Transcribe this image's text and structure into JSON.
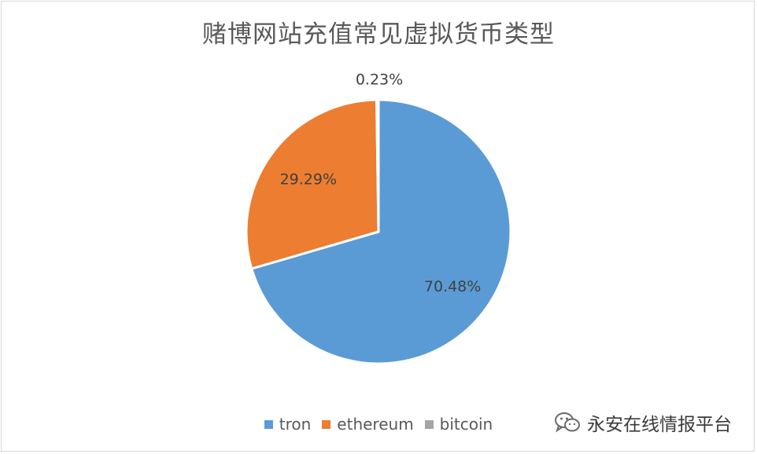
{
  "colors": {
    "tron": "#5b9bd5",
    "ethereum": "#ed7d31",
    "bitcoin": "#a5a5a5",
    "text": "#595959"
  },
  "watermark": {
    "text": "永安在线情报平台"
  },
  "chart_data": {
    "type": "pie",
    "title": "赌博网站充值常见虚拟货币类型",
    "categories": [
      "tron",
      "ethereum",
      "bitcoin"
    ],
    "values": [
      70.48,
      29.29,
      0.23
    ],
    "labels": [
      "70.48%",
      "29.29%",
      "0.23%"
    ],
    "legend_position": "bottom",
    "start_angle_deg": 0,
    "direction": "clockwise"
  }
}
